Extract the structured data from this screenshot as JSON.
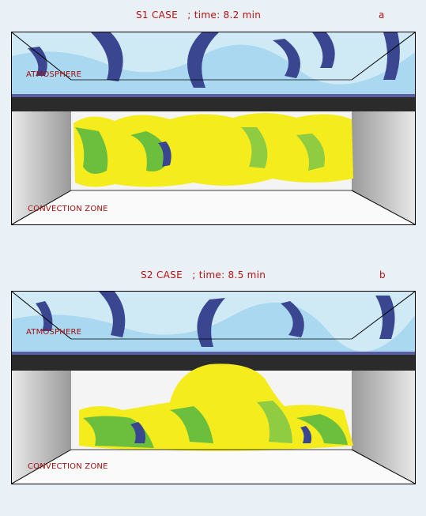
{
  "panels": [
    {
      "id": "a",
      "title": "S1 CASE   ; time: 8.2 min",
      "letter": "a",
      "top_label": "ATMOSPHERE",
      "bottom_label": "CONVECTION ZONE"
    },
    {
      "id": "b",
      "title": "S2 CASE   ; time: 8.5 min",
      "letter": "b",
      "top_label": "ATMOSPHERE",
      "bottom_label": "CONVECTION ZONE"
    }
  ],
  "colors": {
    "label_red": "#b71010",
    "atmosphere_light": "#bfe3f3",
    "atmosphere_dark": "#2f3a86",
    "plume_yellow": "#f4ec1c",
    "plume_green": "#6cbf3c",
    "wall_gray": "#bdbdbd",
    "band_dark": "#2a2a2a"
  }
}
